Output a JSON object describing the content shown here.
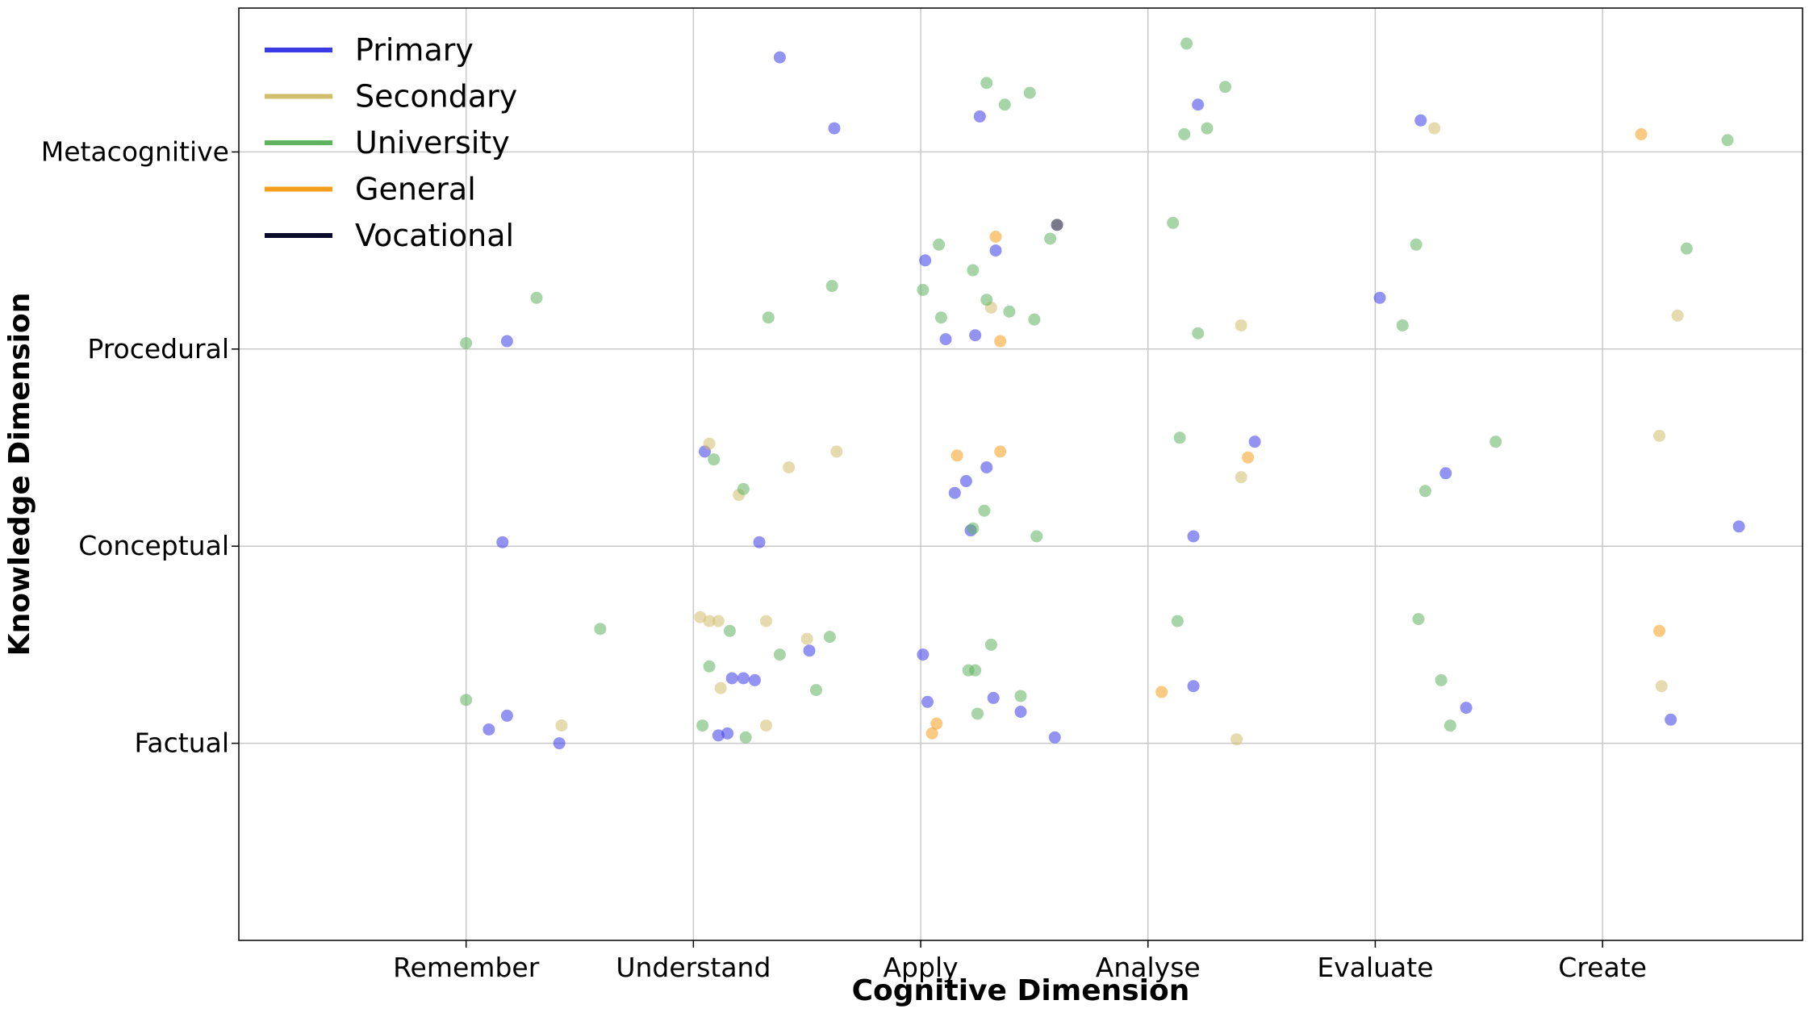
{
  "chart_data": {
    "type": "scatter",
    "xlabel": "Cognitive Dimension",
    "ylabel": "Knowledge Dimension",
    "x_categories": [
      "Remember",
      "Understand",
      "Apply",
      "Analyse",
      "Evaluate",
      "Create"
    ],
    "y_categories": [
      "Factual",
      "Conceptual",
      "Procedural",
      "Metacognitive"
    ],
    "xlim": [
      -1,
      5.88
    ],
    "ylim": [
      -1,
      3.73
    ],
    "grid": true,
    "legend_position": "top-left",
    "series": [
      {
        "name": "Primary",
        "color": "#3b3be6",
        "points": [
          {
            "x": 1.38,
            "y": 3.48
          },
          {
            "x": 1.62,
            "y": 3.12
          },
          {
            "x": 2.26,
            "y": 3.18
          },
          {
            "x": 3.22,
            "y": 3.24
          },
          {
            "x": 4.2,
            "y": 3.16
          },
          {
            "x": 0.18,
            "y": 2.04
          },
          {
            "x": 2.02,
            "y": 2.45
          },
          {
            "x": 2.33,
            "y": 2.5
          },
          {
            "x": 2.11,
            "y": 2.05
          },
          {
            "x": 2.24,
            "y": 2.07
          },
          {
            "x": 4.02,
            "y": 2.26
          },
          {
            "x": 1.05,
            "y": 1.48
          },
          {
            "x": 0.16,
            "y": 1.02
          },
          {
            "x": 1.29,
            "y": 1.02
          },
          {
            "x": 2.15,
            "y": 1.27
          },
          {
            "x": 2.2,
            "y": 1.33
          },
          {
            "x": 2.29,
            "y": 1.4
          },
          {
            "x": 2.22,
            "y": 1.08
          },
          {
            "x": 3.2,
            "y": 1.05
          },
          {
            "x": 3.47,
            "y": 1.53
          },
          {
            "x": 4.31,
            "y": 1.37
          },
          {
            "x": 5.6,
            "y": 1.1
          },
          {
            "x": 0.1,
            "y": 0.07
          },
          {
            "x": 0.18,
            "y": 0.14
          },
          {
            "x": 0.41,
            "y": 0.0
          },
          {
            "x": 1.11,
            "y": 0.04
          },
          {
            "x": 1.15,
            "y": 0.05
          },
          {
            "x": 1.17,
            "y": 0.33
          },
          {
            "x": 1.22,
            "y": 0.33
          },
          {
            "x": 1.27,
            "y": 0.32
          },
          {
            "x": 1.51,
            "y": 0.47
          },
          {
            "x": 2.01,
            "y": 0.45
          },
          {
            "x": 2.03,
            "y": 0.21
          },
          {
            "x": 2.32,
            "y": 0.23
          },
          {
            "x": 2.44,
            "y": 0.16
          },
          {
            "x": 2.59,
            "y": 0.03
          },
          {
            "x": 3.2,
            "y": 0.29
          },
          {
            "x": 4.4,
            "y": 0.18
          },
          {
            "x": 5.3,
            "y": 0.12
          }
        ]
      },
      {
        "name": "Secondary",
        "color": "#d1bd6b",
        "points": [
          {
            "x": 4.26,
            "y": 3.12
          },
          {
            "x": 2.31,
            "y": 2.21
          },
          {
            "x": 3.41,
            "y": 2.12
          },
          {
            "x": 5.33,
            "y": 2.17
          },
          {
            "x": 1.07,
            "y": 1.52
          },
          {
            "x": 1.42,
            "y": 1.4
          },
          {
            "x": 1.63,
            "y": 1.48
          },
          {
            "x": 1.2,
            "y": 1.26
          },
          {
            "x": 3.41,
            "y": 1.35
          },
          {
            "x": 5.25,
            "y": 1.56
          },
          {
            "x": 0.42,
            "y": 0.09
          },
          {
            "x": 1.03,
            "y": 0.64
          },
          {
            "x": 1.07,
            "y": 0.62
          },
          {
            "x": 1.11,
            "y": 0.62
          },
          {
            "x": 1.32,
            "y": 0.62
          },
          {
            "x": 1.5,
            "y": 0.53
          },
          {
            "x": 1.12,
            "y": 0.28
          },
          {
            "x": 1.32,
            "y": 0.09
          },
          {
            "x": 3.39,
            "y": 0.02
          },
          {
            "x": 5.26,
            "y": 0.29
          }
        ]
      },
      {
        "name": "University",
        "color": "#5fb35f",
        "points": [
          {
            "x": 3.17,
            "y": 3.55
          },
          {
            "x": 2.29,
            "y": 3.35
          },
          {
            "x": 2.48,
            "y": 3.3
          },
          {
            "x": 2.37,
            "y": 3.24
          },
          {
            "x": 3.34,
            "y": 3.33
          },
          {
            "x": 3.26,
            "y": 3.12
          },
          {
            "x": 3.16,
            "y": 3.09
          },
          {
            "x": 5.55,
            "y": 3.06
          },
          {
            "x": 0.31,
            "y": 2.26
          },
          {
            "x": 1.33,
            "y": 2.16
          },
          {
            "x": 1.61,
            "y": 2.32
          },
          {
            "x": 0.0,
            "y": 2.03
          },
          {
            "x": 2.08,
            "y": 2.53
          },
          {
            "x": 2.23,
            "y": 2.4
          },
          {
            "x": 2.01,
            "y": 2.3
          },
          {
            "x": 2.09,
            "y": 2.16
          },
          {
            "x": 2.29,
            "y": 2.25
          },
          {
            "x": 2.39,
            "y": 2.19
          },
          {
            "x": 2.5,
            "y": 2.15
          },
          {
            "x": 2.57,
            "y": 2.56
          },
          {
            "x": 3.11,
            "y": 2.64
          },
          {
            "x": 3.22,
            "y": 2.08
          },
          {
            "x": 4.18,
            "y": 2.53
          },
          {
            "x": 4.12,
            "y": 2.12
          },
          {
            "x": 5.37,
            "y": 2.51
          },
          {
            "x": 1.09,
            "y": 1.44
          },
          {
            "x": 1.22,
            "y": 1.29
          },
          {
            "x": 2.28,
            "y": 1.18
          },
          {
            "x": 2.23,
            "y": 1.09
          },
          {
            "x": 2.51,
            "y": 1.05
          },
          {
            "x": 3.14,
            "y": 1.55
          },
          {
            "x": 4.22,
            "y": 1.28
          },
          {
            "x": 4.53,
            "y": 1.53
          },
          {
            "x": 0.59,
            "y": 0.58
          },
          {
            "x": 1.16,
            "y": 0.57
          },
          {
            "x": 1.6,
            "y": 0.54
          },
          {
            "x": 1.38,
            "y": 0.45
          },
          {
            "x": 2.31,
            "y": 0.5
          },
          {
            "x": 2.21,
            "y": 0.37
          },
          {
            "x": 2.24,
            "y": 0.37
          },
          {
            "x": 1.07,
            "y": 0.39
          },
          {
            "x": 1.54,
            "y": 0.27
          },
          {
            "x": 0.0,
            "y": 0.22
          },
          {
            "x": 1.04,
            "y": 0.09
          },
          {
            "x": 1.23,
            "y": 0.03
          },
          {
            "x": 2.25,
            "y": 0.15
          },
          {
            "x": 2.44,
            "y": 0.24
          },
          {
            "x": 3.13,
            "y": 0.62
          },
          {
            "x": 4.19,
            "y": 0.63
          },
          {
            "x": 4.29,
            "y": 0.32
          },
          {
            "x": 4.33,
            "y": 0.09
          }
        ]
      },
      {
        "name": "General",
        "color": "#f59d1b",
        "points": [
          {
            "x": 5.17,
            "y": 3.09
          },
          {
            "x": 2.33,
            "y": 2.57
          },
          {
            "x": 2.35,
            "y": 2.04
          },
          {
            "x": 2.16,
            "y": 1.46
          },
          {
            "x": 2.35,
            "y": 1.48
          },
          {
            "x": 3.44,
            "y": 1.45
          },
          {
            "x": 5.25,
            "y": 0.57
          },
          {
            "x": 2.07,
            "y": 0.1
          },
          {
            "x": 2.05,
            "y": 0.05
          },
          {
            "x": 3.06,
            "y": 0.26
          }
        ]
      },
      {
        "name": "Vocational",
        "color": "#0b0b2b",
        "points": [
          {
            "x": 2.6,
            "y": 2.63
          }
        ]
      }
    ]
  }
}
